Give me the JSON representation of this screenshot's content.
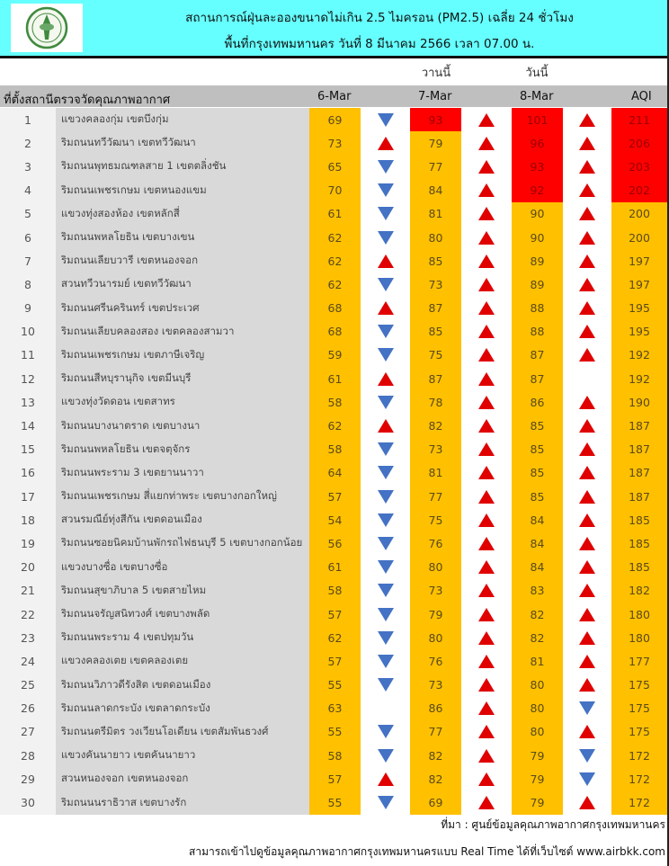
{
  "header": {
    "title": "สถานการณ์ฝุ่นละอองขนาดไม่เกิน 2.5 ไมครอน (PM2.5) เฉลี่ย 24 ชั่วโมง",
    "subtitle": "พื้นที่กรุงเทพมหานคร วันที่ 8 มีนาคม 2566 เวลา 07.00 น.",
    "background_color": "#66ffff"
  },
  "day_labels": {
    "yesterday": "วานนี้",
    "today": "วันนี้"
  },
  "columns": {
    "station": "ที่ตั้งสถานีตรวจวัดคุณภาพอากาศ",
    "d6": "6-Mar",
    "d7": "7-Mar",
    "d8": "8-Mar",
    "aqi": "AQI"
  },
  "colors": {
    "moderate": "#ffc000",
    "unhealthy": "#ff0000",
    "up_arrow": "#e00000",
    "down_arrow": "#4472c4"
  },
  "rows": [
    {
      "no": "1",
      "name": "แขวงคลองกุ่ม เขตบึงกุ่ม",
      "d6": "69",
      "a1": "down",
      "d7": "93",
      "a2": "up",
      "d8": "101",
      "a3": "up",
      "aqi": "211",
      "red": [
        "d7",
        "d8",
        "aqi"
      ]
    },
    {
      "no": "2",
      "name": "ริมถนนทวีวัฒนา เขตทวีวัฒนา",
      "d6": "73",
      "a1": "up",
      "d7": "79",
      "a2": "up",
      "d8": "96",
      "a3": "up",
      "aqi": "206",
      "red": [
        "d8",
        "aqi"
      ]
    },
    {
      "no": "3",
      "name": "ริมถนนพุทธมณฑลสาย 1 เขตตลิ่งชัน",
      "d6": "65",
      "a1": "down",
      "d7": "77",
      "a2": "up",
      "d8": "93",
      "a3": "up",
      "aqi": "203",
      "red": [
        "d8",
        "aqi"
      ]
    },
    {
      "no": "4",
      "name": "ริมถนนเพชรเกษม เขตหนองแขม",
      "d6": "70",
      "a1": "down",
      "d7": "84",
      "a2": "up",
      "d8": "92",
      "a3": "up",
      "aqi": "202",
      "red": [
        "d8",
        "aqi"
      ]
    },
    {
      "no": "5",
      "name": "แขวงทุ่งสองห้อง เขตหลักสี่",
      "d6": "61",
      "a1": "down",
      "d7": "81",
      "a2": "up",
      "d8": "90",
      "a3": "up",
      "aqi": "200",
      "red": []
    },
    {
      "no": "6",
      "name": "ริมถนนพหลโยธิน เขตบางเขน",
      "d6": "62",
      "a1": "down",
      "d7": "80",
      "a2": "up",
      "d8": "90",
      "a3": "up",
      "aqi": "200",
      "red": []
    },
    {
      "no": "7",
      "name": "ริมถนนเลียบวารี เขตหนองจอก",
      "d6": "62",
      "a1": "up",
      "d7": "85",
      "a2": "up",
      "d8": "89",
      "a3": "up",
      "aqi": "197",
      "red": []
    },
    {
      "no": "8",
      "name": "สวนทวีวนารมย์ เขตทวีวัฒนา",
      "d6": "62",
      "a1": "down",
      "d7": "73",
      "a2": "up",
      "d8": "89",
      "a3": "up",
      "aqi": "197",
      "red": []
    },
    {
      "no": "9",
      "name": "ริมถนนศรีนครินทร์ เขตประเวศ",
      "d6": "68",
      "a1": "up",
      "d7": "87",
      "a2": "up",
      "d8": "88",
      "a3": "up",
      "aqi": "195",
      "red": []
    },
    {
      "no": "10",
      "name": "ริมถนนเลียบคลองสอง เขตคลองสามวา",
      "d6": "68",
      "a1": "down",
      "d7": "85",
      "a2": "up",
      "d8": "88",
      "a3": "up",
      "aqi": "195",
      "red": []
    },
    {
      "no": "11",
      "name": "ริมถนนเพชรเกษม เขตภาษีเจริญ",
      "d6": "59",
      "a1": "down",
      "d7": "75",
      "a2": "up",
      "d8": "87",
      "a3": "up",
      "aqi": "192",
      "red": []
    },
    {
      "no": "12",
      "name": "ริมถนนสีหบุรานุกิจ เขตมีนบุรี",
      "d6": "61",
      "a1": "up",
      "d7": "87",
      "a2": "up",
      "d8": "87",
      "a3": "",
      "aqi": "192",
      "red": []
    },
    {
      "no": "13",
      "name": "แขวงทุ่งวัดดอน เขตสาทร",
      "d6": "58",
      "a1": "down",
      "d7": "78",
      "a2": "up",
      "d8": "86",
      "a3": "up",
      "aqi": "190",
      "red": []
    },
    {
      "no": "14",
      "name": "ริมถนนบางนาตราด เขตบางนา",
      "d6": "62",
      "a1": "up",
      "d7": "82",
      "a2": "up",
      "d8": "85",
      "a3": "up",
      "aqi": "187",
      "red": []
    },
    {
      "no": "15",
      "name": "ริมถนนพหลโยธิน เขตจตุจักร",
      "d6": "58",
      "a1": "down",
      "d7": "73",
      "a2": "up",
      "d8": "85",
      "a3": "up",
      "aqi": "187",
      "red": []
    },
    {
      "no": "16",
      "name": "ริมถนนพระราม 3 เขตยานนาวา",
      "d6": "64",
      "a1": "down",
      "d7": "81",
      "a2": "up",
      "d8": "85",
      "a3": "up",
      "aqi": "187",
      "red": []
    },
    {
      "no": "17",
      "name": "ริมถนนเพชรเกษม สี่แยกท่าพระ เขตบางกอกใหญ่",
      "d6": "57",
      "a1": "down",
      "d7": "77",
      "a2": "up",
      "d8": "85",
      "a3": "up",
      "aqi": "187",
      "red": []
    },
    {
      "no": "18",
      "name": "สวนรมณีย์ทุ่งสีกัน เขตดอนเมือง",
      "d6": "54",
      "a1": "down",
      "d7": "75",
      "a2": "up",
      "d8": "84",
      "a3": "up",
      "aqi": "185",
      "red": []
    },
    {
      "no": "19",
      "name": "ริมถนนซอยนิคมบ้านพักรถไฟธนบุรี 5 เขตบางกอกน้อย",
      "d6": "56",
      "a1": "down",
      "d7": "76",
      "a2": "up",
      "d8": "84",
      "a3": "up",
      "aqi": "185",
      "red": []
    },
    {
      "no": "20",
      "name": "แขวงบางซื่อ เขตบางซื่อ",
      "d6": "61",
      "a1": "down",
      "d7": "80",
      "a2": "up",
      "d8": "84",
      "a3": "up",
      "aqi": "185",
      "red": []
    },
    {
      "no": "21",
      "name": "ริมถนนสุขาภิบาล 5 เขตสายไหม",
      "d6": "58",
      "a1": "down",
      "d7": "73",
      "a2": "up",
      "d8": "83",
      "a3": "up",
      "aqi": "182",
      "red": []
    },
    {
      "no": "22",
      "name": "ริมถนนจรัญสนิทวงศ์ เขตบางพลัด",
      "d6": "57",
      "a1": "down",
      "d7": "79",
      "a2": "up",
      "d8": "82",
      "a3": "up",
      "aqi": "180",
      "red": []
    },
    {
      "no": "23",
      "name": "ริมถนนพระราม 4 เขตปทุมวัน",
      "d6": "62",
      "a1": "down",
      "d7": "80",
      "a2": "up",
      "d8": "82",
      "a3": "up",
      "aqi": "180",
      "red": []
    },
    {
      "no": "24",
      "name": "แขวงคลองเตย เขตคลองเตย",
      "d6": "57",
      "a1": "down",
      "d7": "76",
      "a2": "up",
      "d8": "81",
      "a3": "up",
      "aqi": "177",
      "red": []
    },
    {
      "no": "25",
      "name": "ริมถนนวิภาวดีรังสิต เขตดอนเมือง",
      "d6": "55",
      "a1": "down",
      "d7": "73",
      "a2": "up",
      "d8": "80",
      "a3": "up",
      "aqi": "175",
      "red": []
    },
    {
      "no": "26",
      "name": "ริมถนนลาดกระบัง เขตลาดกระบัง",
      "d6": "63",
      "a1": "",
      "d7": "86",
      "a2": "up",
      "d8": "80",
      "a3": "down",
      "aqi": "175",
      "red": []
    },
    {
      "no": "27",
      "name": "ริมถนนตรีมิตร วงเวียนโอเดียน เขตสัมพันธวงศ์",
      "d6": "55",
      "a1": "down",
      "d7": "77",
      "a2": "up",
      "d8": "80",
      "a3": "up",
      "aqi": "175",
      "red": []
    },
    {
      "no": "28",
      "name": "แขวงคันนายาว เขตคันนายาว",
      "d6": "58",
      "a1": "down",
      "d7": "82",
      "a2": "up",
      "d8": "79",
      "a3": "down",
      "aqi": "172",
      "red": []
    },
    {
      "no": "29",
      "name": "สวนหนองจอก เขตหนองจอก",
      "d6": "57",
      "a1": "up",
      "d7": "82",
      "a2": "up",
      "d8": "79",
      "a3": "down",
      "aqi": "172",
      "red": []
    },
    {
      "no": "30",
      "name": "ริมถนนนราธิวาส เขตบางรัก",
      "d6": "55",
      "a1": "down",
      "d7": "69",
      "a2": "up",
      "d8": "79",
      "a3": "up",
      "aqi": "172",
      "red": []
    }
  ],
  "footer": {
    "source": "ที่มา : ศูนย์ข้อมูลคุณภาพอากาศกรุงเทพมหานคร",
    "note": "สามารถเข้าไปดูข้อมูลคุณภาพอากาศกรุงเทพมหานครแบบ Real Time ได้ที่เว็บไซต์ www.airbkk.com"
  }
}
